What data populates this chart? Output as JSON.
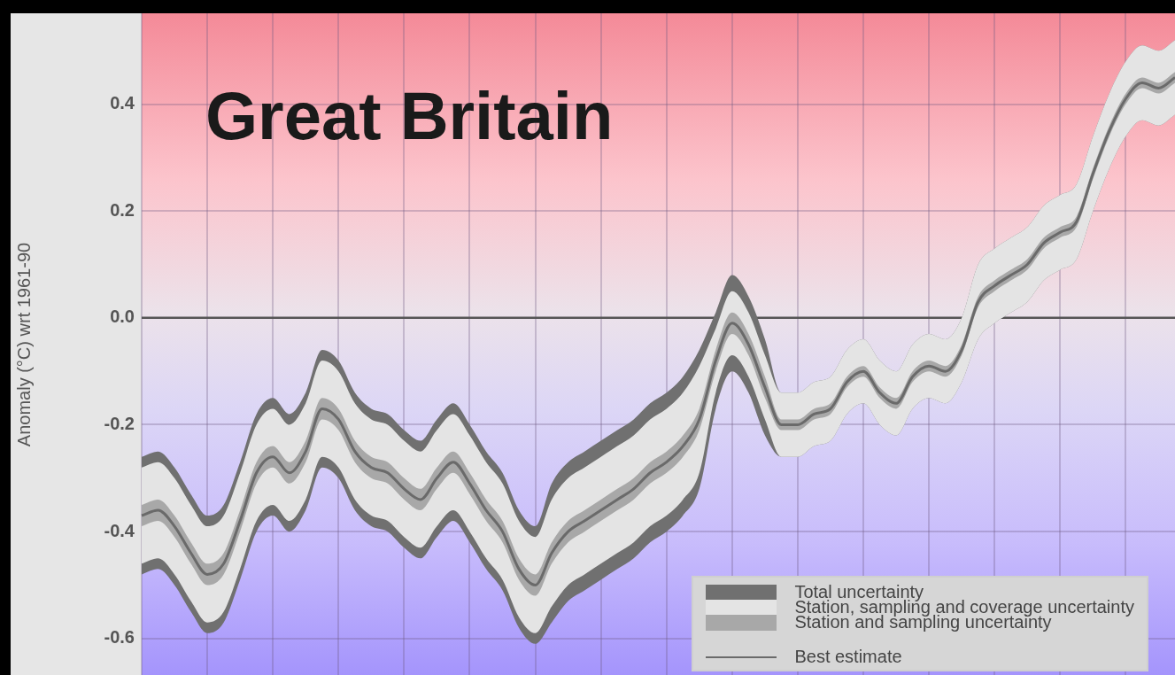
{
  "chart_data": {
    "type": "line",
    "title": "Great Britain",
    "ylabel": "Anomaly (°C) wrt 1961-90",
    "categories": [
      null,
      null,
      null,
      null,
      null,
      null,
      null,
      null,
      null,
      null,
      null,
      null,
      null,
      null,
      null,
      null,
      null,
      null,
      null,
      null,
      null,
      null,
      null,
      null,
      null,
      null,
      null,
      null,
      null,
      null,
      null,
      null,
      null,
      null,
      null,
      null,
      null,
      null,
      null,
      null,
      null,
      null,
      null,
      null,
      null,
      null,
      null,
      null,
      null,
      null,
      null,
      null,
      null,
      null,
      null,
      null,
      null,
      null,
      null,
      null,
      null,
      null,
      null,
      null
    ],
    "series": [
      {
        "name": "Total uncertainty",
        "color": "#707070",
        "values": [
          null,
          null,
          null,
          null,
          null,
          null,
          null,
          null,
          null,
          null,
          null,
          null,
          null,
          null,
          null,
          null,
          null,
          null,
          null,
          null,
          null,
          null,
          null,
          null,
          null,
          null,
          null,
          null,
          null,
          null,
          null,
          null,
          null,
          null,
          null,
          null,
          null,
          null,
          null,
          null,
          null,
          null,
          null,
          null,
          null,
          null,
          null,
          null,
          null,
          null,
          null,
          null,
          null,
          null,
          null,
          null,
          null,
          null,
          null,
          null,
          null,
          null,
          null,
          null
        ],
        "upper": [
          -0.26,
          -0.25,
          -0.28,
          -0.33,
          -0.37,
          -0.35,
          -0.27,
          -0.18,
          -0.15,
          -0.18,
          -0.14,
          -0.06,
          -0.08,
          -0.14,
          -0.17,
          -0.18,
          -0.21,
          -0.23,
          -0.19,
          -0.16,
          -0.2,
          -0.25,
          -0.29,
          -0.36,
          -0.39,
          -0.31,
          -0.27,
          -0.25,
          -0.23,
          -0.21,
          -0.19,
          -0.16,
          -0.14,
          -0.11,
          -0.06,
          0.01,
          0.08,
          0.04,
          -0.04,
          -0.14,
          -0.14,
          -0.12,
          -0.11,
          -0.06,
          -0.04,
          -0.08,
          -0.1,
          -0.05,
          -0.03,
          -0.04,
          0.0,
          0.1,
          0.13,
          0.15,
          0.17,
          0.21,
          0.23,
          0.25,
          0.34,
          0.42,
          0.48,
          0.51,
          0.5,
          0.52
        ],
        "lower": [
          -0.48,
          -0.47,
          -0.5,
          -0.55,
          -0.59,
          -0.57,
          -0.49,
          -0.4,
          -0.37,
          -0.4,
          -0.36,
          -0.28,
          -0.3,
          -0.36,
          -0.39,
          -0.4,
          -0.43,
          -0.45,
          -0.41,
          -0.38,
          -0.42,
          -0.47,
          -0.51,
          -0.58,
          -0.61,
          -0.57,
          -0.53,
          -0.51,
          -0.49,
          -0.47,
          -0.45,
          -0.42,
          -0.4,
          -0.37,
          -0.32,
          -0.17,
          -0.1,
          -0.14,
          -0.22,
          -0.26,
          -0.26,
          -0.24,
          -0.23,
          -0.18,
          -0.16,
          -0.2,
          -0.22,
          -0.17,
          -0.15,
          -0.16,
          -0.12,
          -0.04,
          -0.01,
          0.01,
          0.03,
          0.07,
          0.09,
          0.11,
          0.2,
          0.28,
          0.34,
          0.37,
          0.36,
          0.38
        ]
      },
      {
        "name": "Station, sampling and coverage uncertainty",
        "color": "#e4e4e4",
        "values": [
          null,
          null,
          null,
          null,
          null,
          null,
          null,
          null,
          null,
          null,
          null,
          null,
          null,
          null,
          null,
          null,
          null,
          null,
          null,
          null,
          null,
          null,
          null,
          null,
          null,
          null,
          null,
          null,
          null,
          null,
          null,
          null,
          null,
          null,
          null,
          null,
          null,
          null,
          null,
          null,
          null,
          null,
          null,
          null,
          null,
          null,
          null,
          null,
          null,
          null,
          null,
          null,
          null,
          null,
          null,
          null,
          null,
          null,
          null,
          null,
          null,
          null,
          null,
          null
        ],
        "upper": [
          -0.28,
          -0.27,
          -0.3,
          -0.35,
          -0.39,
          -0.37,
          -0.29,
          -0.2,
          -0.17,
          -0.2,
          -0.16,
          -0.08,
          -0.1,
          -0.16,
          -0.19,
          -0.2,
          -0.23,
          -0.25,
          -0.21,
          -0.18,
          -0.22,
          -0.27,
          -0.31,
          -0.38,
          -0.41,
          -0.34,
          -0.3,
          -0.28,
          -0.26,
          -0.24,
          -0.22,
          -0.19,
          -0.17,
          -0.14,
          -0.09,
          -0.02,
          0.05,
          0.01,
          -0.07,
          -0.14,
          -0.14,
          -0.12,
          -0.11,
          -0.06,
          -0.04,
          -0.08,
          -0.1,
          -0.05,
          -0.03,
          -0.04,
          0.0,
          0.1,
          0.13,
          0.15,
          0.17,
          0.21,
          0.23,
          0.25,
          0.34,
          0.42,
          0.48,
          0.51,
          0.5,
          0.52
        ],
        "lower": [
          -0.46,
          -0.45,
          -0.48,
          -0.53,
          -0.57,
          -0.55,
          -0.47,
          -0.38,
          -0.35,
          -0.38,
          -0.34,
          -0.26,
          -0.28,
          -0.34,
          -0.37,
          -0.38,
          -0.41,
          -0.43,
          -0.39,
          -0.36,
          -0.4,
          -0.45,
          -0.49,
          -0.56,
          -0.59,
          -0.54,
          -0.5,
          -0.48,
          -0.46,
          -0.44,
          -0.42,
          -0.39,
          -0.37,
          -0.34,
          -0.29,
          -0.14,
          -0.07,
          -0.11,
          -0.19,
          -0.26,
          -0.26,
          -0.24,
          -0.23,
          -0.18,
          -0.16,
          -0.2,
          -0.22,
          -0.17,
          -0.15,
          -0.16,
          -0.12,
          -0.04,
          -0.01,
          0.01,
          0.03,
          0.07,
          0.09,
          0.11,
          0.2,
          0.28,
          0.34,
          0.37,
          0.36,
          0.38
        ]
      },
      {
        "name": "Station and sampling uncertainty",
        "color": "#a8a8a8",
        "values": [
          null,
          null,
          null,
          null,
          null,
          null,
          null,
          null,
          null,
          null,
          null,
          null,
          null,
          null,
          null,
          null,
          null,
          null,
          null,
          null,
          null,
          null,
          null,
          null,
          null,
          null,
          null,
          null,
          null,
          null,
          null,
          null,
          null,
          null,
          null,
          null,
          null,
          null,
          null,
          null,
          null,
          null,
          null,
          null,
          null,
          null,
          null,
          null,
          null,
          null,
          null,
          null,
          null,
          null,
          null,
          null,
          null,
          null,
          null,
          null,
          null,
          null,
          null,
          null
        ],
        "upper": [
          -0.35,
          -0.34,
          -0.37,
          -0.42,
          -0.46,
          -0.44,
          -0.36,
          -0.27,
          -0.24,
          -0.27,
          -0.23,
          -0.15,
          -0.17,
          -0.23,
          -0.26,
          -0.27,
          -0.3,
          -0.32,
          -0.28,
          -0.25,
          -0.29,
          -0.34,
          -0.38,
          -0.45,
          -0.48,
          -0.42,
          -0.38,
          -0.36,
          -0.34,
          -0.32,
          -0.3,
          -0.27,
          -0.25,
          -0.22,
          -0.17,
          -0.06,
          0.01,
          -0.03,
          -0.11,
          -0.19,
          -0.19,
          -0.17,
          -0.16,
          -0.11,
          -0.09,
          -0.13,
          -0.15,
          -0.1,
          -0.08,
          -0.09,
          -0.05,
          0.04,
          0.07,
          0.09,
          0.11,
          0.15,
          0.17,
          0.19,
          0.28,
          0.36,
          0.42,
          0.45,
          0.44,
          0.46
        ],
        "lower": [
          -0.39,
          -0.38,
          -0.41,
          -0.46,
          -0.5,
          -0.48,
          -0.4,
          -0.31,
          -0.28,
          -0.31,
          -0.27,
          -0.19,
          -0.21,
          -0.27,
          -0.3,
          -0.31,
          -0.34,
          -0.36,
          -0.32,
          -0.29,
          -0.33,
          -0.38,
          -0.42,
          -0.49,
          -0.52,
          -0.46,
          -0.42,
          -0.4,
          -0.38,
          -0.36,
          -0.34,
          -0.31,
          -0.29,
          -0.26,
          -0.21,
          -0.1,
          -0.03,
          -0.07,
          -0.15,
          -0.21,
          -0.21,
          -0.19,
          -0.18,
          -0.13,
          -0.11,
          -0.15,
          -0.17,
          -0.12,
          -0.1,
          -0.11,
          -0.07,
          0.02,
          0.05,
          0.07,
          0.09,
          0.13,
          0.15,
          0.17,
          0.26,
          0.34,
          0.4,
          0.43,
          0.42,
          0.44
        ]
      },
      {
        "name": "Best estimate",
        "color": "#6a6a6a",
        "values": [
          -0.37,
          -0.36,
          -0.39,
          -0.44,
          -0.48,
          -0.46,
          -0.38,
          -0.29,
          -0.26,
          -0.29,
          -0.25,
          -0.17,
          -0.19,
          -0.25,
          -0.28,
          -0.29,
          -0.32,
          -0.34,
          -0.3,
          -0.27,
          -0.31,
          -0.36,
          -0.4,
          -0.47,
          -0.5,
          -0.44,
          -0.4,
          -0.38,
          -0.36,
          -0.34,
          -0.32,
          -0.29,
          -0.27,
          -0.24,
          -0.19,
          -0.08,
          -0.01,
          -0.05,
          -0.13,
          -0.2,
          -0.2,
          -0.18,
          -0.17,
          -0.12,
          -0.1,
          -0.14,
          -0.16,
          -0.11,
          -0.09,
          -0.1,
          -0.06,
          0.03,
          0.06,
          0.08,
          0.1,
          0.14,
          0.16,
          0.18,
          0.27,
          0.35,
          0.41,
          0.44,
          0.43,
          0.45
        ]
      }
    ],
    "ylim": [
      -0.67,
      0.57
    ],
    "yticks": [
      -0.6,
      -0.4,
      -0.2,
      {
        "value": 0,
        "label": "0.0"
      },
      0.2,
      0.4
    ],
    "ref_lines": [
      {
        "axis": "y",
        "value": 0,
        "color": "#555555"
      }
    ],
    "grid": true,
    "legend": "bottom right",
    "tick_labels": "y"
  }
}
